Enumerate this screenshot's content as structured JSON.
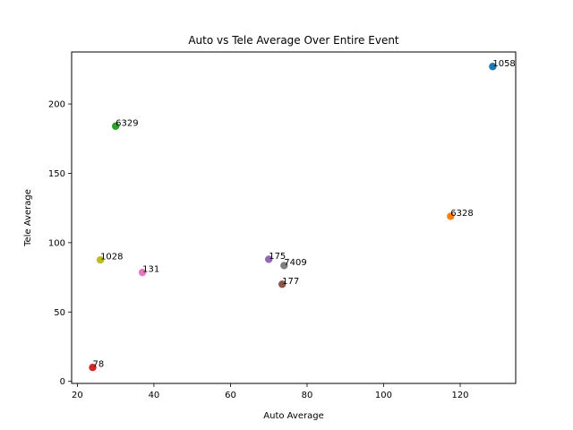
{
  "chart_data": {
    "type": "scatter",
    "title": "Auto vs Tele Average Over Entire Event",
    "xlabel": "Auto Average",
    "ylabel": "Tele Average",
    "xlim": [
      18.5,
      134.5
    ],
    "ylim": [
      -1.5,
      237.5
    ],
    "xticks": [
      20,
      40,
      60,
      80,
      100,
      120
    ],
    "yticks": [
      0,
      50,
      100,
      150,
      200
    ],
    "grid": false,
    "points": [
      {
        "label": "1058",
        "x": 128.5,
        "y": 227,
        "color": "#1f77b4"
      },
      {
        "label": "6328",
        "x": 117.5,
        "y": 119,
        "color": "#ff7f0e"
      },
      {
        "label": "6329",
        "x": 30,
        "y": 184,
        "color": "#2ca02c"
      },
      {
        "label": "78",
        "x": 24,
        "y": 10,
        "color": "#d62728"
      },
      {
        "label": "175",
        "x": 70,
        "y": 88,
        "color": "#9467bd"
      },
      {
        "label": "177",
        "x": 73.5,
        "y": 70,
        "color": "#8c564b"
      },
      {
        "label": "131",
        "x": 37,
        "y": 78.5,
        "color": "#e377c2"
      },
      {
        "label": "7409",
        "x": 74,
        "y": 83.5,
        "color": "#7f7f7f"
      },
      {
        "label": "1028",
        "x": 26,
        "y": 87.5,
        "color": "#bcbd22"
      }
    ]
  }
}
